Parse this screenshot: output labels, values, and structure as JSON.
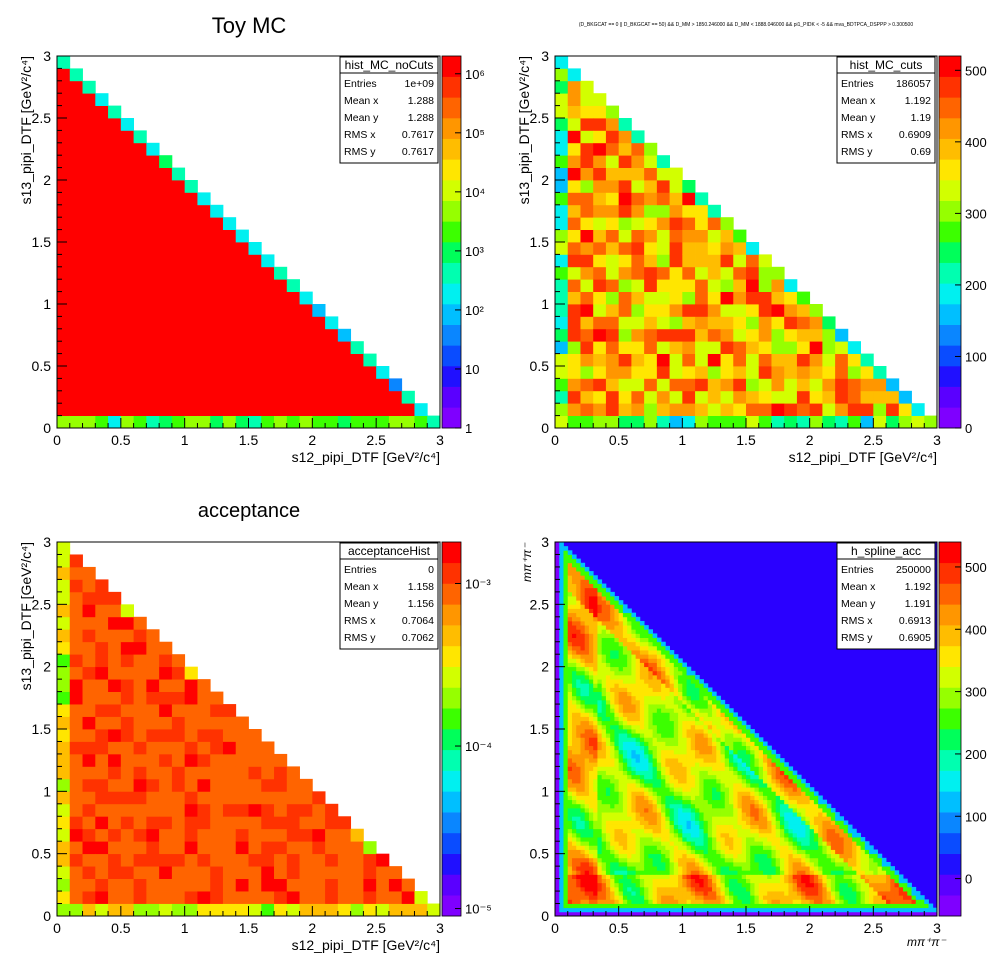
{
  "colors": {
    "palette": [
      "#7f00ff",
      "#5a00ff",
      "#2010ff",
      "#0a4cff",
      "#0a86ff",
      "#00bfff",
      "#00f0f0",
      "#00ffb0",
      "#00ff5a",
      "#3cff00",
      "#96ff00",
      "#d2ff00",
      "#ffe600",
      "#ffbd00",
      "#ff9600",
      "#ff6400",
      "#ff3200",
      "#ff0000"
    ],
    "empty_z": "#ffffff",
    "contour_background": "#2a00ff"
  },
  "chart_data": [
    {
      "type": "heatmap",
      "title": "Toy MC",
      "xlabel": "s12_pipi_DTF [GeV²/c⁴]",
      "ylabel": "s13_pipi_DTF [GeV²/c⁴]",
      "xlim": [
        0,
        3
      ],
      "ylim": [
        0,
        3
      ],
      "xticks": [
        "0",
        "0.5",
        "1",
        "1.5",
        "2",
        "2.5",
        "3"
      ],
      "yticks": [
        "0",
        "0.5",
        "1",
        "1.5",
        "2",
        "2.5",
        "3"
      ],
      "zscale": "log",
      "zrange": [
        1,
        2000000
      ],
      "zticks": [
        "1",
        "10",
        "10²",
        "10³",
        "10⁴",
        "10⁵",
        "10⁶"
      ],
      "bins": 30,
      "stats": {
        "name": "hist_MC_noCuts",
        "rows": [
          [
            "Entries",
            "1e+09"
          ],
          [
            "Mean x",
            "1.288"
          ],
          [
            "Mean y",
            "1.288"
          ],
          [
            "RMS x",
            "0.7617"
          ],
          [
            "RMS y",
            "0.7617"
          ]
        ]
      }
    },
    {
      "type": "heatmap",
      "title": "(D_BKGCAT == 0 || D_BKGCAT == 50) && D_MM > 1850.246000 && D_MM < 1888.046000 && pi1_PIDK < -5 && mva_BDTPCA_DSPPP > 0.300500",
      "xlabel": "s12_pipi_DTF [GeV²/c⁴]",
      "ylabel": "s13_pipi_DTF [GeV²/c⁴]",
      "xlim": [
        0,
        3
      ],
      "ylim": [
        0,
        3
      ],
      "xticks": [
        "0",
        "0.5",
        "1",
        "1.5",
        "2",
        "2.5",
        "3"
      ],
      "yticks": [
        "0",
        "0.5",
        "1",
        "1.5",
        "2",
        "2.5",
        "3"
      ],
      "zscale": "linear",
      "zrange": [
        0,
        520
      ],
      "zticks": [
        "0",
        "100",
        "200",
        "300",
        "400",
        "500"
      ],
      "bins": 30,
      "stats": {
        "name": "hist_MC_cuts",
        "rows": [
          [
            "Entries",
            "186057"
          ],
          [
            "Mean x",
            "1.192"
          ],
          [
            "Mean y",
            "1.19"
          ],
          [
            "RMS x",
            "0.6909"
          ],
          [
            "RMS y",
            "0.69"
          ]
        ]
      }
    },
    {
      "type": "heatmap",
      "title": "acceptance",
      "xlabel": "s12_pipi_DTF [GeV²/c⁴]",
      "ylabel": "s13_pipi_DTF [GeV²/c⁴]",
      "xlim": [
        0,
        3
      ],
      "ylim": [
        0,
        3
      ],
      "xticks": [
        "0",
        "0.5",
        "1",
        "1.5",
        "2",
        "2.5",
        "3"
      ],
      "yticks": [
        "0",
        "0.5",
        "1",
        "1.5",
        "2",
        "2.5",
        "3"
      ],
      "zscale": "log",
      "zrange": [
        9e-06,
        0.0018
      ],
      "zticks": [
        "10⁻⁵",
        "10⁻⁴",
        "10⁻³"
      ],
      "bins": 30,
      "stats": {
        "name": "acceptanceHist",
        "rows": [
          [
            "Entries",
            "0"
          ],
          [
            "Mean x",
            "1.158"
          ],
          [
            "Mean y",
            "1.156"
          ],
          [
            "RMS x",
            "0.7064"
          ],
          [
            "RMS y",
            "0.7062"
          ]
        ]
      }
    },
    {
      "type": "heatmap",
      "title": "",
      "xlabel": "mπ⁺π⁻",
      "ylabel": "mπ⁺π⁻",
      "xlim": [
        0,
        3
      ],
      "ylim": [
        0,
        3
      ],
      "xticks": [
        "0",
        "0.5",
        "1",
        "1.5",
        "2",
        "2.5",
        "3"
      ],
      "yticks": [
        "0",
        "0.5",
        "1",
        "1.5",
        "2",
        "2.5",
        "3"
      ],
      "zscale": "linear",
      "zrange": [
        -60,
        540
      ],
      "zticks": [
        "0",
        "100",
        "200",
        "300",
        "400",
        "500"
      ],
      "bins": 90,
      "stats": {
        "name": "h_spline_acc",
        "rows": [
          [
            "Entries",
            "250000"
          ],
          [
            "Mean x",
            "1.192"
          ],
          [
            "Mean y",
            "1.191"
          ],
          [
            "RMS x",
            "0.6913"
          ],
          [
            "RMS y",
            "0.6905"
          ]
        ]
      }
    }
  ]
}
